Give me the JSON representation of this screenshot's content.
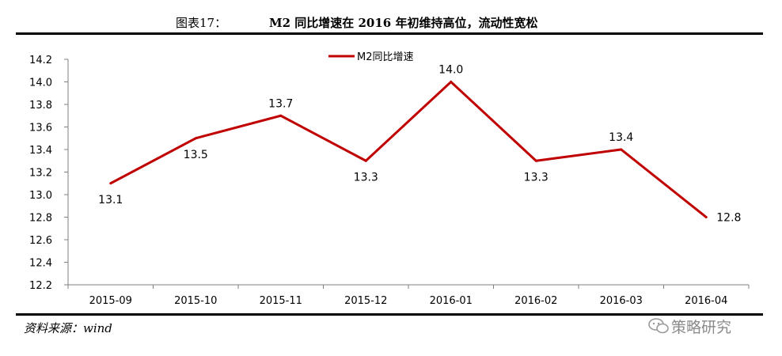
{
  "figure": {
    "label": "图表17：",
    "title": "M2 同比增速在 2016 年初维持高位，流动性宽松",
    "source": "资料来源：wind",
    "watermark": "策略研究",
    "watermark_icon": "wechat-icon"
  },
  "colors": {
    "series": "#C00000",
    "axis": "#808080"
  },
  "chart_data": {
    "type": "line",
    "categories": [
      "2015-09",
      "2015-10",
      "2015-11",
      "2015-12",
      "2016-01",
      "2016-02",
      "2016-03",
      "2016-04"
    ],
    "series": [
      {
        "name": "M2同比增速",
        "values": [
          13.1,
          13.5,
          13.7,
          13.3,
          14.0,
          13.3,
          13.4,
          12.8
        ]
      }
    ],
    "data_labels": [
      "13.1",
      "13.5",
      "13.7",
      "13.3",
      "14.0",
      "13.3",
      "13.4",
      "12.8"
    ],
    "y_ticks": [
      "12.2",
      "12.4",
      "12.6",
      "12.8",
      "13.0",
      "13.2",
      "13.4",
      "13.6",
      "13.8",
      "14.0",
      "14.2"
    ],
    "ylim": [
      12.2,
      14.2
    ],
    "grid": false,
    "legend_position": "top-left"
  }
}
